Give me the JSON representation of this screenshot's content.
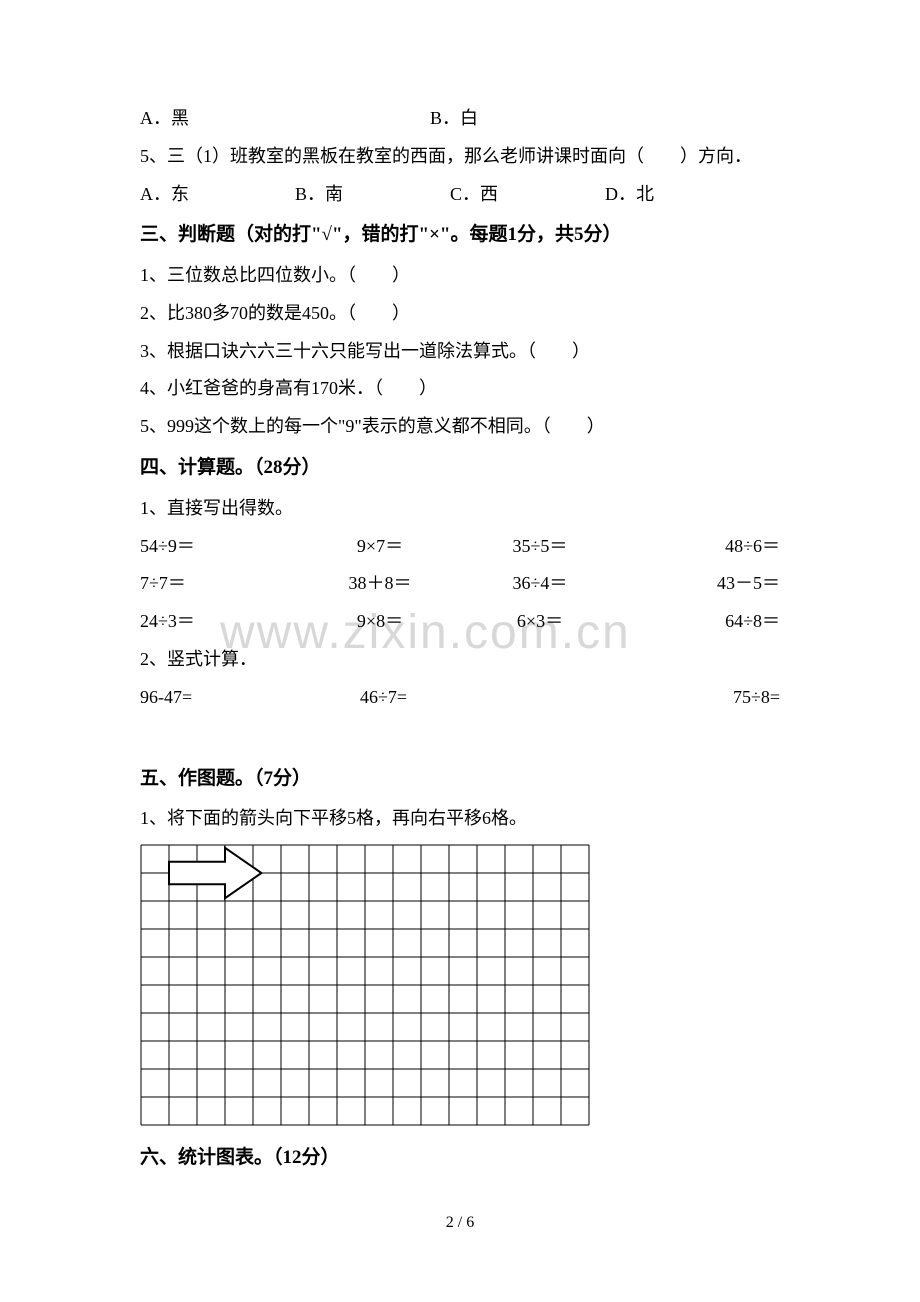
{
  "q4": {
    "optA": "A．黑",
    "optB": "B．白"
  },
  "q5": {
    "text": "5、三（1）班教室的黑板在教室的西面，那么老师讲课时面向（　　）方向．",
    "optA": "A．东",
    "optB": "B．南",
    "optC": "C．西",
    "optD": "D．北"
  },
  "section3": {
    "title": "三、判断题（对的打\"√\"，错的打\"×\"。每题1分，共5分）",
    "items": [
      "1、三位数总比四位数小。（　　）",
      "2、比380多70的数是450。（　　）",
      "3、根据口诀六六三十六只能写出一道除法算式。（　　）",
      "4、小红爸爸的身高有170米．（　　）",
      "5、999这个数上的每一个\"9\"表示的意义都不相同。（　　）"
    ]
  },
  "section4": {
    "title": "四、计算题。（28分）",
    "sub1": "1、直接写出得数。",
    "row1": [
      "54÷9＝",
      "9×7＝",
      "35÷5＝",
      "48÷6＝"
    ],
    "row2": [
      "7÷7＝",
      "38＋8＝",
      "36÷4＝",
      "43－5＝"
    ],
    "row3": [
      "24÷3＝",
      "9×8＝",
      "6×3＝",
      "64÷8＝"
    ],
    "sub2": "2、竖式计算．",
    "row4": [
      "96-47=",
      "46÷7=",
      "75÷8="
    ]
  },
  "section5": {
    "title": "五、作图题。（7分）",
    "sub1": "1、将下面的箭头向下平移5格，再向右平移6格。"
  },
  "section6": {
    "title": "六、统计图表。（12分）"
  },
  "grid": {
    "cols": 16,
    "rows": 10,
    "cell": 28,
    "stroke": "#000000",
    "arrow_fill": "#ffffff",
    "arrow_stroke": "#000000"
  },
  "watermark": "www.zixin.com.cn",
  "page": "2 / 6"
}
